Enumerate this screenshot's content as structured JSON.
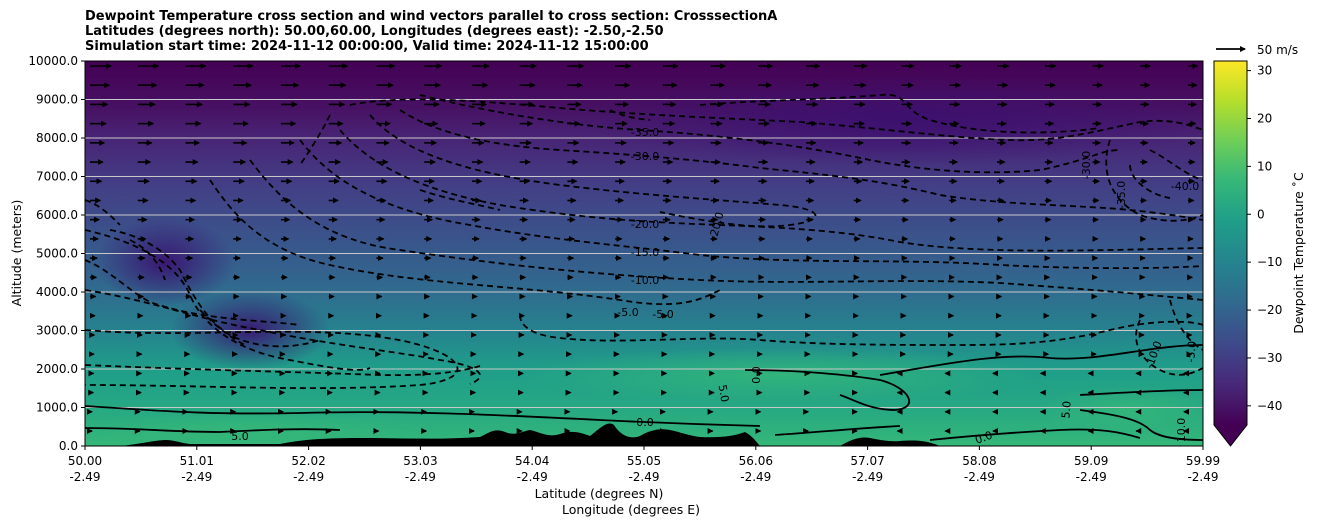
{
  "chart_data": {
    "type": "heatmap",
    "title_lines": [
      "Dewpoint Temperature cross section and wind vectors parallel to cross section: CrosssectionA",
      "Latitudes (degrees north): 50.00,60.00, Longitudes (degrees east): -2.50,-2.50",
      "Simulation start time: 2024-11-12 00:00:00, Valid time: 2024-11-12 15:00:00"
    ],
    "ylabel": "Altitude (meters)",
    "xlabel_lines": [
      "Latitude (degrees N)",
      "Longitude (degrees E)"
    ],
    "ylim": [
      0,
      10000
    ],
    "y_ticks": [
      "0.0",
      "1000.0",
      "2000.0",
      "3000.0",
      "4000.0",
      "5000.0",
      "6000.0",
      "7000.0",
      "8000.0",
      "9000.0",
      "10000.0"
    ],
    "x_ticks": [
      {
        "lat": "50.00",
        "lon": "-2.49"
      },
      {
        "lat": "51.01",
        "lon": "-2.49"
      },
      {
        "lat": "52.02",
        "lon": "-2.49"
      },
      {
        "lat": "53.03",
        "lon": "-2.49"
      },
      {
        "lat": "54.04",
        "lon": "-2.49"
      },
      {
        "lat": "55.05",
        "lon": "-2.49"
      },
      {
        "lat": "56.06",
        "lon": "-2.49"
      },
      {
        "lat": "57.07",
        "lon": "-2.49"
      },
      {
        "lat": "58.08",
        "lon": "-2.49"
      },
      {
        "lat": "59.09",
        "lon": "-2.49"
      },
      {
        "lat": "59.99",
        "lon": "-2.49"
      }
    ],
    "grid": "horizontal",
    "colorbar": {
      "label": "Dewpoint Temperature $^\\circ$C",
      "label_display": "Dewpoint Temperature ˚C",
      "range": [
        -44,
        32
      ],
      "ticks": [
        "30",
        "20",
        "10",
        "0",
        "−10",
        "−20",
        "−30",
        "−40"
      ],
      "extend": "min",
      "colormap": [
        "#440154",
        "#482878",
        "#3e4989",
        "#31688e",
        "#26828e",
        "#1f9e89",
        "#35b779",
        "#6ece58",
        "#b5de2b",
        "#fde725"
      ]
    },
    "quiver_key": {
      "label": "50 m/s",
      "speed": 50
    },
    "contour_levels_labeled": [
      "-40.0",
      "-35.0",
      "-30.0",
      "-25.0",
      "-20.0",
      "-15.0",
      "-10.0",
      "-5.0",
      "0.0",
      "5.0",
      "10.0"
    ],
    "contour_label_texts": [
      "-35.0",
      "-30.0",
      "-20.0",
      "-15.0",
      "-10.0",
      "-5.0",
      "-5.0",
      "5.0",
      "-20.0",
      "0.0",
      "0.0",
      "-40.0",
      "-30.0",
      "-35.0",
      "-10.0",
      "5.0",
      "-5.0",
      "5.0",
      "0.0",
      "10.0"
    ],
    "series": [
      {
        "name": "dewpoint",
        "note_levels": "filled contours"
      },
      {
        "name": "wind",
        "type": "quiver"
      }
    ]
  }
}
